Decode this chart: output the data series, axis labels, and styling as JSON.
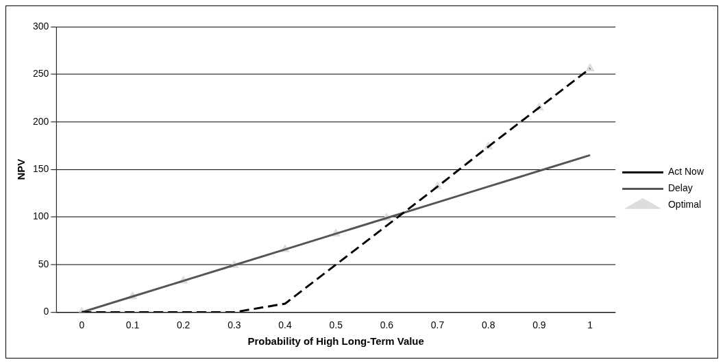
{
  "chart_data": {
    "type": "line",
    "xlabel": "Probability of High Long-Term Value",
    "ylabel": "NPV",
    "categories": [
      "0",
      "0.1",
      "0.2",
      "0.3",
      "0.4",
      "0.5",
      "0.6",
      "0.7",
      "0.8",
      "0.9",
      "1"
    ],
    "series": [
      {
        "name": "Act Now",
        "color": "#000000",
        "line_style": "dashed",
        "marker": "none",
        "values": [
          0,
          0,
          0,
          0,
          9,
          50,
          91,
          132,
          174,
          215,
          256
        ]
      },
      {
        "name": "Delay",
        "color": "#555555",
        "line_style": "solid",
        "marker": "none",
        "values": [
          0,
          16.5,
          33,
          49.5,
          66,
          82.5,
          99,
          115.5,
          132,
          148.5,
          165
        ]
      },
      {
        "name": "Optimal",
        "type": "scatter",
        "color": "#dddddd",
        "marker": "triangle",
        "values": [
          0,
          16.5,
          33,
          49.5,
          66,
          82.5,
          99,
          132,
          174,
          215,
          256
        ]
      }
    ],
    "ylim": [
      0,
      300
    ],
    "yticks": [
      0,
      50,
      100,
      150,
      200,
      250,
      300
    ],
    "grid": "y",
    "legend": "right"
  }
}
